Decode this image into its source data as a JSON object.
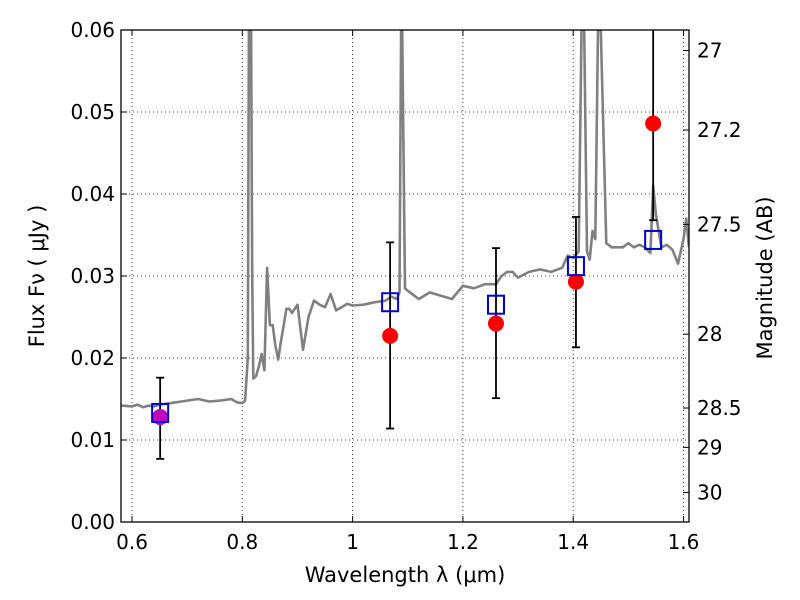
{
  "chart_data": {
    "type": "scatter",
    "title": "",
    "xlabel": "Wavelength  λ (μm)",
    "ylabel": "Flux  Fν  ( μJy )",
    "y2label": "Magnitude (AB)",
    "xlim": [
      0.58,
      1.61
    ],
    "ylim": [
      0.0,
      0.06
    ],
    "grid": true,
    "xticks": [
      0.6,
      0.8,
      1.0,
      1.2,
      1.4,
      1.6
    ],
    "xtick_labels": [
      "0.6",
      "0.8",
      "1",
      "1.2",
      "1.4",
      "1.6"
    ],
    "yticks": [
      0.0,
      0.01,
      0.02,
      0.03,
      0.04,
      0.05,
      0.06
    ],
    "ytick_labels": [
      "0.00",
      "0.01",
      "0.02",
      "0.03",
      "0.04",
      "0.05",
      "0.06"
    ],
    "y2ticks": [
      {
        "label": "27",
        "flux": 0.0575
      },
      {
        "label": "27.2",
        "flux": 0.0478
      },
      {
        "label": "27.5",
        "flux": 0.0363
      },
      {
        "label": "28",
        "flux": 0.0229
      },
      {
        "label": "28.5",
        "flux": 0.0139
      },
      {
        "label": "29",
        "flux": 0.0091
      },
      {
        "label": "30",
        "flux": 0.0036
      }
    ],
    "colors": {
      "spectrum": "#808080",
      "observed": "#ff0000",
      "first_observed": "#bf00bf",
      "model": "#0000cc",
      "errorbar": "#000000"
    },
    "series": [
      {
        "kind": "line",
        "x": [
          0.58,
          0.6,
          0.61,
          0.62,
          0.63,
          0.64,
          0.65,
          0.66,
          0.67,
          0.68,
          0.7,
          0.72,
          0.74,
          0.76,
          0.78,
          0.79,
          0.8,
          0.805,
          0.81,
          0.812,
          0.814,
          0.816,
          0.818,
          0.82,
          0.825,
          0.83,
          0.835,
          0.84,
          0.845,
          0.85,
          0.855,
          0.86,
          0.865,
          0.87,
          0.875,
          0.88,
          0.885,
          0.89,
          0.9,
          0.91,
          0.92,
          0.93,
          0.94,
          0.95,
          0.96,
          0.97,
          0.98,
          0.99,
          1.0,
          1.02,
          1.04,
          1.06,
          1.07,
          1.08,
          1.085,
          1.088,
          1.09,
          1.095,
          1.1,
          1.12,
          1.14,
          1.16,
          1.18,
          1.2,
          1.22,
          1.24,
          1.26,
          1.27,
          1.28,
          1.29,
          1.3,
          1.32,
          1.34,
          1.36,
          1.38,
          1.39,
          1.4,
          1.41,
          1.415,
          1.42,
          1.425,
          1.43,
          1.435,
          1.44,
          1.445,
          1.45,
          1.46,
          1.47,
          1.48,
          1.49,
          1.5,
          1.51,
          1.52,
          1.53,
          1.54,
          1.545,
          1.55,
          1.56,
          1.57,
          1.58,
          1.59,
          1.6,
          1.605,
          1.61
        ],
        "y": [
          0.0142,
          0.0141,
          0.0143,
          0.014,
          0.0142,
          0.0141,
          0.0143,
          0.0144,
          0.0145,
          0.0146,
          0.0148,
          0.015,
          0.0147,
          0.0148,
          0.015,
          0.0146,
          0.0145,
          0.0148,
          0.02,
          0.06,
          0.06,
          0.06,
          0.03,
          0.0175,
          0.0178,
          0.019,
          0.0205,
          0.0185,
          0.031,
          0.024,
          0.024,
          0.0215,
          0.0198,
          0.022,
          0.024,
          0.026,
          0.026,
          0.0255,
          0.0265,
          0.021,
          0.025,
          0.027,
          0.0265,
          0.0262,
          0.0278,
          0.0258,
          0.0262,
          0.0266,
          0.0264,
          0.0265,
          0.0268,
          0.027,
          0.0275,
          0.0272,
          0.028,
          0.06,
          0.06,
          0.0285,
          0.0282,
          0.0272,
          0.028,
          0.0276,
          0.0272,
          0.0288,
          0.0285,
          0.029,
          0.029,
          0.03,
          0.0305,
          0.0305,
          0.0298,
          0.0305,
          0.0308,
          0.0305,
          0.031,
          0.0325,
          0.0322,
          0.033,
          0.06,
          0.06,
          0.033,
          0.032,
          0.0355,
          0.0345,
          0.06,
          0.06,
          0.034,
          0.0335,
          0.0335,
          0.0335,
          0.034,
          0.0335,
          0.0338,
          0.0335,
          0.0328,
          0.041,
          0.0375,
          0.0335,
          0.0338,
          0.0332,
          0.0315,
          0.0345,
          0.037,
          0.0335
        ]
      },
      {
        "name": "",
        "kind": "observed",
        "x": [
          0.651,
          1.068,
          1.26,
          1.405,
          1.545
        ],
        "y": [
          0.0128,
          0.0227,
          0.0242,
          0.0293,
          0.0486
        ],
        "err_low": [
          0.0077,
          0.0114,
          0.0151,
          0.0213,
          0.0368
        ],
        "err_high": [
          0.0176,
          0.0341,
          0.0334,
          0.0372,
          0.0603
        ]
      },
      {
        "name": "",
        "kind": "model",
        "x": [
          0.651,
          1.068,
          1.26,
          1.405,
          1.545
        ],
        "y": [
          0.0133,
          0.0268,
          0.0265,
          0.0312,
          0.0344
        ]
      }
    ]
  }
}
